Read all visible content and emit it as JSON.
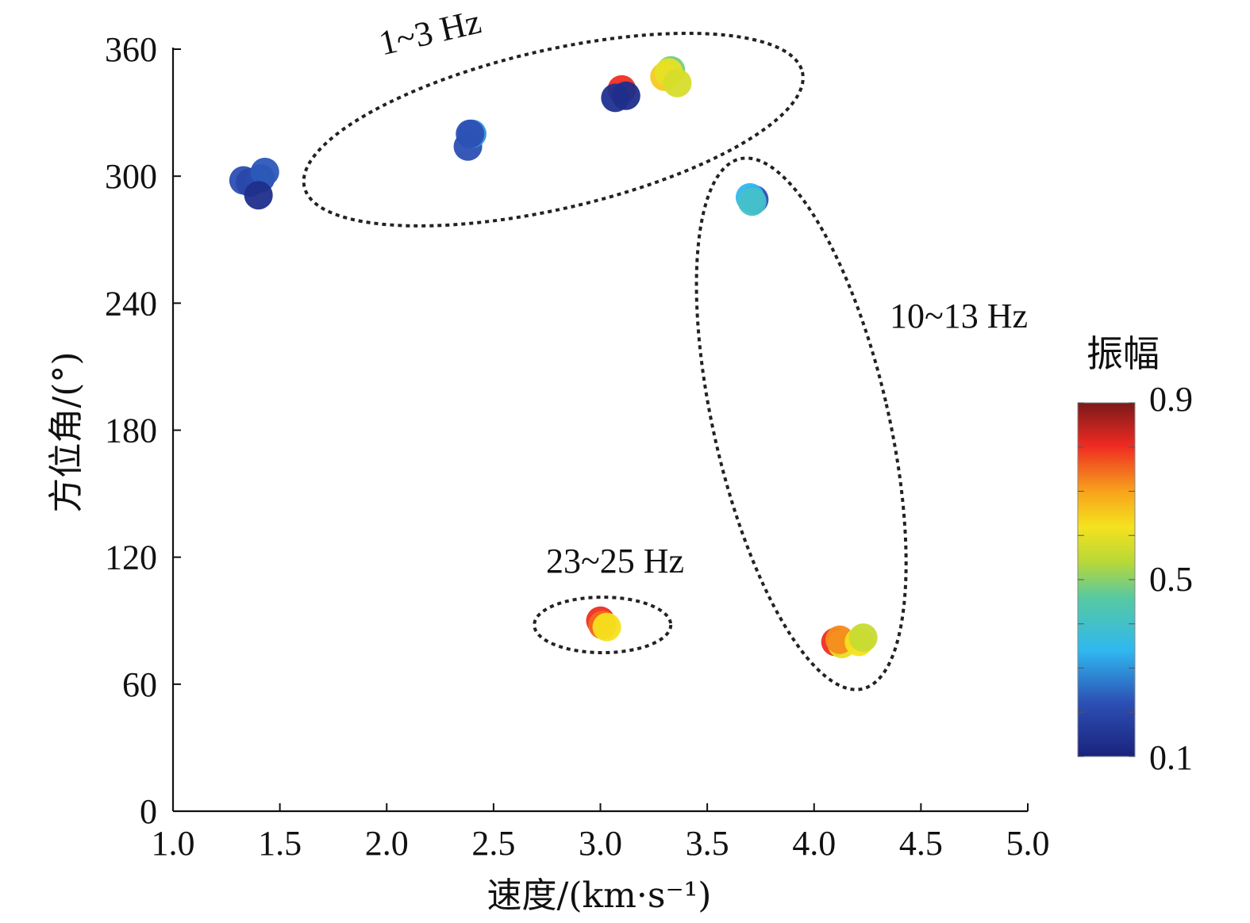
{
  "chart_data": {
    "type": "scatter",
    "title": "",
    "xlabel": "速度/(km·s⁻¹)",
    "ylabel": "方位角/(°)",
    "xlim": [
      1.0,
      5.0
    ],
    "ylim": [
      0,
      360
    ],
    "x_ticks": [
      "1.0",
      "1.5",
      "2.0",
      "2.5",
      "3.0",
      "3.5",
      "4.0",
      "4.5",
      "5.0"
    ],
    "y_ticks": [
      "0",
      "60",
      "120",
      "180",
      "240",
      "300",
      "360"
    ],
    "colorbar": {
      "title": "振幅",
      "min": 0.1,
      "max": 0.9,
      "labels": [
        "0.9",
        "0.5",
        "0.1"
      ],
      "colormap": "jet"
    },
    "groups": [
      {
        "label": "1~3 Hz",
        "ellipse": {
          "cx": 2.78,
          "cy": 322,
          "rx": 2.36,
          "ry": 9.5,
          "angle_deg": -13
        }
      },
      {
        "label": "10~13 Hz",
        "ellipse": {
          "cx": 3.94,
          "cy": 183,
          "rx": 0.44,
          "ry": 0.99,
          "angle_deg": -13
        }
      },
      {
        "label": "23~25 Hz",
        "ellipse": {
          "cx": 3.01,
          "cy": 88,
          "rx": 0.32,
          "ry": 0.3,
          "angle_deg": 0
        }
      }
    ],
    "points": [
      {
        "x": 1.33,
        "y": 298,
        "amplitude": 0.22
      },
      {
        "x": 1.36,
        "y": 297,
        "amplitude": 0.2
      },
      {
        "x": 1.41,
        "y": 299,
        "amplitude": 0.21
      },
      {
        "x": 1.43,
        "y": 302,
        "amplitude": 0.23
      },
      {
        "x": 1.4,
        "y": 291,
        "amplitude": 0.13
      },
      {
        "x": 2.38,
        "y": 314,
        "amplitude": 0.22
      },
      {
        "x": 2.4,
        "y": 320,
        "amplitude": 0.3
      },
      {
        "x": 2.39,
        "y": 320,
        "amplitude": 0.22
      },
      {
        "x": 3.1,
        "y": 341,
        "amplitude": 0.8
      },
      {
        "x": 3.07,
        "y": 337,
        "amplitude": 0.14
      },
      {
        "x": 3.12,
        "y": 338,
        "amplitude": 0.13
      },
      {
        "x": 3.33,
        "y": 350,
        "amplitude": 0.48
      },
      {
        "x": 3.3,
        "y": 347,
        "amplitude": 0.65
      },
      {
        "x": 3.32,
        "y": 349,
        "amplitude": 0.6
      },
      {
        "x": 3.36,
        "y": 344,
        "amplitude": 0.58
      },
      {
        "x": 3.72,
        "y": 289,
        "amplitude": 0.22
      },
      {
        "x": 3.7,
        "y": 290,
        "amplitude": 0.34
      },
      {
        "x": 3.71,
        "y": 288,
        "amplitude": 0.4
      },
      {
        "x": 4.1,
        "y": 80,
        "amplitude": 0.8
      },
      {
        "x": 4.13,
        "y": 79,
        "amplitude": 0.6
      },
      {
        "x": 4.12,
        "y": 81,
        "amplitude": 0.72
      },
      {
        "x": 4.21,
        "y": 80,
        "amplitude": 0.62
      },
      {
        "x": 4.23,
        "y": 82,
        "amplitude": 0.56
      },
      {
        "x": 3.0,
        "y": 90,
        "amplitude": 0.8
      },
      {
        "x": 3.01,
        "y": 88,
        "amplitude": 0.75
      },
      {
        "x": 3.03,
        "y": 87,
        "amplitude": 0.62
      }
    ]
  }
}
